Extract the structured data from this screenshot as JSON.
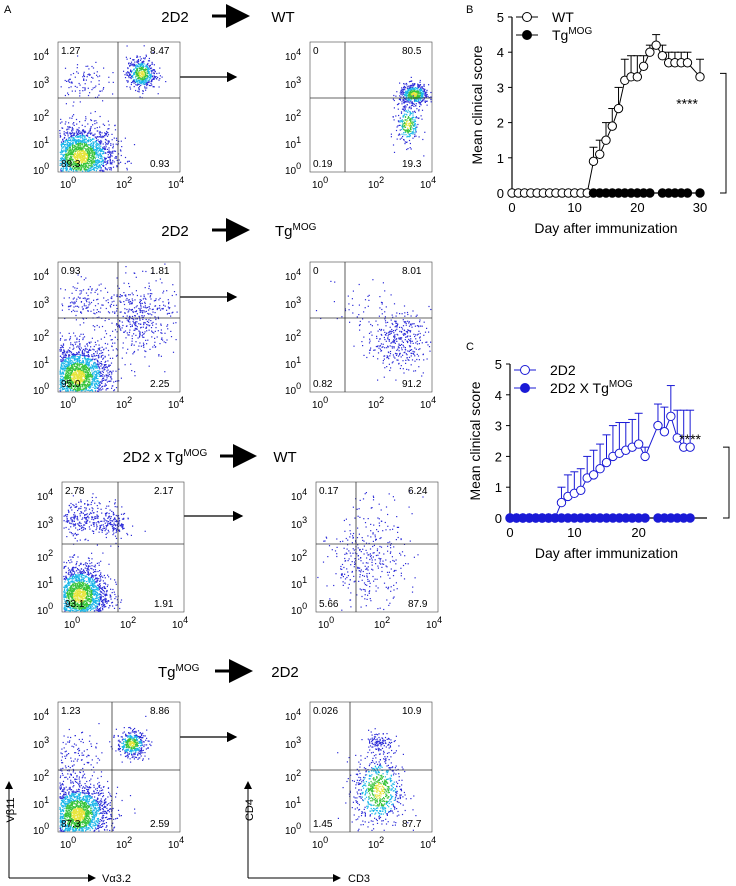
{
  "panel_labels": {
    "a": "A",
    "b": "B",
    "c": "C"
  },
  "flow": {
    "rows": [
      {
        "title_left": "2D2",
        "title_left_sup": "",
        "title_right": "WT",
        "title_right_sup": "",
        "left_quadrants": {
          "ul": "1.27",
          "ur": "8.47",
          "ll": "89.3",
          "lr": "0.93"
        },
        "right_quadrants": {
          "ul": "0",
          "ur": "80.5",
          "ll": "0.19",
          "lr": "19.3"
        }
      },
      {
        "title_left": "2D2",
        "title_left_sup": "",
        "title_right": "Tg",
        "title_right_sup": "MOG",
        "left_quadrants": {
          "ul": "0.93",
          "ur": "1.81",
          "ll": "95.0",
          "lr": "2.25"
        },
        "right_quadrants": {
          "ul": "0",
          "ur": "8.01",
          "ll": "0.82",
          "lr": "91.2"
        }
      },
      {
        "title_left": "2D2 x Tg",
        "title_left_sup": "MOG",
        "title_right": "WT",
        "title_right_sup": "",
        "left_quadrants": {
          "ul": "2.78",
          "ur": "2.17",
          "ll": "93.1",
          "lr": "1.91"
        },
        "right_quadrants": {
          "ul": "0.17",
          "ur": "6.24",
          "ll": "5.66",
          "lr": "87.9"
        }
      },
      {
        "title_left": "Tg",
        "title_left_sup": "MOG",
        "title_right": "2D2",
        "title_right_sup": "",
        "left_quadrants": {
          "ul": "1.23",
          "ur": "8.86",
          "ll": "87.3",
          "lr": "2.59"
        },
        "right_quadrants": {
          "ul": "0.026",
          "ur": "10.9",
          "ll": "1.45",
          "lr": "87.7"
        }
      }
    ],
    "tick_labels": {
      "t0": "0",
      "t1": "1",
      "t2": "2",
      "t3": "3",
      "t4": "4",
      "b10": "10",
      "e0": "0",
      "e2": "2",
      "e4": "4"
    },
    "axis_labels": {
      "left_x": "Vα3.2",
      "left_y": "Vβ11",
      "right_x": "CD3",
      "right_y": "CD4"
    }
  },
  "colors": {
    "dot_blue": "#2b2bd8",
    "dot_cyan": "#19b6e8",
    "dot_green": "#38c43a",
    "dot_yellow": "#e6e43a",
    "chart_c_blue": "#1a1ad6"
  },
  "chart_data": [
    {
      "type": "line",
      "panel": "B",
      "ylabel": "Mean clinical score",
      "xlabel": "Day after immunization",
      "xlim": [
        0,
        30
      ],
      "ylim": [
        0,
        5
      ],
      "xticks": [
        "0",
        "10",
        "20",
        "30"
      ],
      "yticks": [
        "0",
        "1",
        "2",
        "3",
        "4",
        "5"
      ],
      "significance": "****",
      "series": [
        {
          "name": "WT",
          "name_sup": "",
          "marker": "open-circle",
          "x": [
            0,
            1,
            2,
            3,
            4,
            5,
            6,
            7,
            8,
            9,
            10,
            11,
            12,
            13,
            14,
            15,
            16,
            17,
            18,
            19,
            20,
            21,
            22,
            23,
            24,
            25,
            26,
            27,
            28,
            30
          ],
          "y": [
            0,
            0,
            0,
            0,
            0,
            0,
            0,
            0,
            0,
            0,
            0,
            0,
            0,
            0.9,
            1.1,
            1.5,
            1.9,
            2.4,
            3.2,
            3.3,
            3.3,
            3.6,
            4.0,
            4.2,
            3.9,
            3.7,
            3.7,
            3.7,
            3.7,
            3.3
          ],
          "error": [
            0,
            0,
            0,
            0,
            0,
            0,
            0,
            0,
            0,
            0,
            0,
            0,
            0,
            0.4,
            0.4,
            0.5,
            0.5,
            0.6,
            0.6,
            0.6,
            0.6,
            0.3,
            0.2,
            0.3,
            0.3,
            0.3,
            0.3,
            0.3,
            0.3,
            0.5
          ]
        },
        {
          "name": "Tg",
          "name_sup": "MOG",
          "marker": "filled-circle",
          "x": [
            13,
            14,
            15,
            16,
            17,
            18,
            19,
            20,
            21,
            22,
            24,
            25,
            26,
            27,
            28,
            30
          ],
          "y": [
            0,
            0,
            0,
            0,
            0,
            0,
            0,
            0,
            0,
            0,
            0,
            0,
            0,
            0,
            0,
            0
          ]
        }
      ]
    },
    {
      "type": "line",
      "panel": "C",
      "ylabel": "Mean clinical score",
      "xlabel": "Day after immunization",
      "xlim": [
        0,
        30
      ],
      "ylim": [
        0,
        5
      ],
      "xticks": [
        "0",
        "10",
        "20"
      ],
      "yticks": [
        "0",
        "1",
        "2",
        "3",
        "4",
        "5"
      ],
      "significance": "****",
      "series": [
        {
          "name": "2D2",
          "name_sup": "",
          "marker": "open-circle",
          "x": [
            0,
            1,
            2,
            3,
            4,
            5,
            6,
            7,
            8,
            9,
            10,
            11,
            12,
            13,
            14,
            15,
            16,
            17,
            18,
            19,
            20,
            21,
            23,
            24,
            25,
            26,
            27,
            28
          ],
          "y": [
            0,
            0,
            0,
            0,
            0,
            0,
            0,
            0,
            0.5,
            0.7,
            0.8,
            0.9,
            1.3,
            1.4,
            1.6,
            1.8,
            2.0,
            2.1,
            2.2,
            2.3,
            2.4,
            2.0,
            3.0,
            2.8,
            3.3,
            2.6,
            2.3,
            2.3
          ],
          "error": [
            0,
            0,
            0,
            0,
            0,
            0,
            0,
            0,
            0.5,
            0.7,
            0.7,
            0.7,
            0.7,
            0.8,
            0.8,
            0.9,
            1.0,
            1.0,
            0.9,
            0.9,
            1.0,
            0.3,
            0.7,
            0.8,
            1.0,
            0.9,
            1.2,
            1.2
          ]
        },
        {
          "name": "2D2 X Tg",
          "name_sup": "MOG",
          "marker": "filled-circle",
          "x": [
            0,
            1,
            2,
            3,
            4,
            5,
            6,
            7,
            8,
            9,
            10,
            11,
            12,
            13,
            14,
            15,
            16,
            17,
            18,
            19,
            20,
            21,
            23,
            24,
            25,
            26,
            27,
            28
          ],
          "y": [
            0,
            0,
            0,
            0,
            0,
            0,
            0,
            0,
            0,
            0,
            0,
            0,
            0,
            0,
            0,
            0,
            0,
            0,
            0,
            0,
            0,
            0,
            0,
            0,
            0,
            0,
            0,
            0
          ]
        }
      ]
    }
  ]
}
